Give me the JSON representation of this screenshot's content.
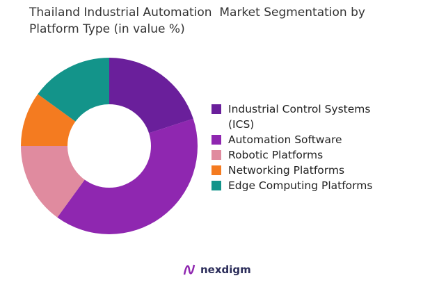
{
  "chart_data": {
    "type": "donut",
    "title": "Thailand Industrial Automation  Market Segmentation by Platform Type (in value %)",
    "categories": [
      "Industrial Control Systems (ICS)",
      "Automation Software",
      "Robotic Platforms",
      "Networking Platforms",
      "Edge Computing Platforms"
    ],
    "values": [
      20,
      40,
      15,
      10,
      15
    ],
    "colors": [
      "#6a1f9b",
      "#8f27b0",
      "#e08b9f",
      "#f47b20",
      "#13948a"
    ],
    "legend": "right"
  },
  "logo": "nexdigm"
}
